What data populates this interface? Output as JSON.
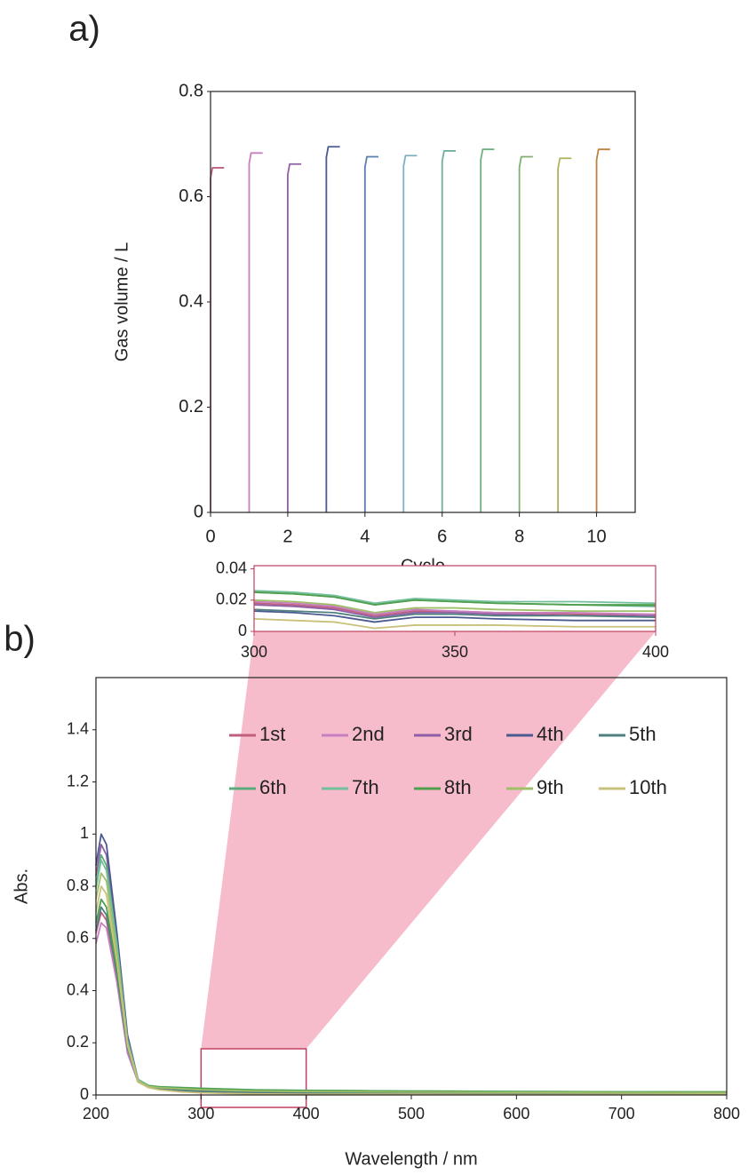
{
  "chart_data": [
    {
      "type": "line",
      "panel_label": "a)",
      "xlabel": "Cycle",
      "ylabel": "Gas volume / L",
      "xlim": [
        0,
        11
      ],
      "xticks": [
        0,
        2,
        4,
        6,
        8,
        10
      ],
      "ylim": [
        0,
        0.8
      ],
      "yticks": [
        0,
        0.2,
        0.4,
        0.6,
        0.8
      ],
      "grid": false,
      "series": [
        {
          "color": "#c0607f",
          "x": [
            0,
            0,
            0.05,
            0.35
          ],
          "values": [
            0,
            0.635,
            0.655,
            0.655
          ]
        },
        {
          "color": "#c77fc0",
          "x": [
            1,
            1,
            1.05,
            1.35
          ],
          "values": [
            0,
            0.663,
            0.683,
            0.683
          ]
        },
        {
          "color": "#8e5fa5",
          "x": [
            2,
            2,
            2.05,
            2.35
          ],
          "values": [
            0,
            0.642,
            0.662,
            0.662
          ]
        },
        {
          "color": "#4a5a90",
          "x": [
            3,
            3,
            3.05,
            3.35
          ],
          "values": [
            0,
            0.675,
            0.695,
            0.695
          ]
        },
        {
          "color": "#5a7fb0",
          "x": [
            4,
            4,
            4.05,
            4.35
          ],
          "values": [
            0,
            0.656,
            0.676,
            0.676
          ]
        },
        {
          "color": "#7fb0c0",
          "x": [
            5,
            5,
            5.05,
            5.35
          ],
          "values": [
            0,
            0.658,
            0.678,
            0.678
          ]
        },
        {
          "color": "#6fb09f",
          "x": [
            6,
            6,
            6.05,
            6.35
          ],
          "values": [
            0,
            0.667,
            0.687,
            0.687
          ]
        },
        {
          "color": "#6fb07f",
          "x": [
            7,
            7,
            7.05,
            7.35
          ],
          "values": [
            0,
            0.67,
            0.69,
            0.69
          ]
        },
        {
          "color": "#7fb06f",
          "x": [
            8,
            8,
            8.05,
            8.35
          ],
          "values": [
            0,
            0.656,
            0.676,
            0.676
          ]
        },
        {
          "color": "#b0b060",
          "x": [
            9,
            9,
            9.05,
            9.35
          ],
          "values": [
            0,
            0.653,
            0.673,
            0.673
          ]
        },
        {
          "color": "#c08040",
          "x": [
            10,
            10,
            10.05,
            10.35
          ],
          "values": [
            0,
            0.67,
            0.69,
            0.69
          ]
        }
      ]
    },
    {
      "type": "line",
      "panel_label": "b)",
      "xlabel": "Wavelength / nm",
      "ylabel": "Abs.",
      "legend": "upper right",
      "xlim": [
        200,
        800
      ],
      "xticks": [
        200,
        300,
        400,
        500,
        600,
        700,
        800
      ],
      "ylim": [
        0,
        1.6
      ],
      "yticks": [
        0,
        0.2,
        0.4,
        0.6,
        0.8,
        1,
        1.2,
        1.4
      ],
      "grid": false,
      "x": [
        200,
        205,
        210,
        220,
        230,
        240,
        250,
        260,
        280,
        300,
        350,
        400,
        500,
        600,
        700,
        800
      ],
      "series": [
        {
          "name": "1st",
          "color": "#c0607f",
          "values": [
            0.62,
            0.7,
            0.67,
            0.45,
            0.17,
            0.05,
            0.03,
            0.026,
            0.022,
            0.018,
            0.013,
            0.01,
            0.008,
            0.007,
            0.006,
            0.005
          ]
        },
        {
          "name": "2nd",
          "color": "#c77fc0",
          "values": [
            0.58,
            0.66,
            0.64,
            0.43,
            0.16,
            0.05,
            0.03,
            0.026,
            0.022,
            0.019,
            0.013,
            0.011,
            0.009,
            0.008,
            0.007,
            0.006
          ]
        },
        {
          "name": "3rd",
          "color": "#8e5fa5",
          "values": [
            0.84,
            0.96,
            0.92,
            0.6,
            0.22,
            0.06,
            0.034,
            0.028,
            0.022,
            0.017,
            0.012,
            0.01,
            0.008,
            0.007,
            0.006,
            0.005
          ]
        },
        {
          "name": "4th",
          "color": "#4a5a90",
          "values": [
            0.88,
            1.0,
            0.96,
            0.62,
            0.23,
            0.06,
            0.032,
            0.025,
            0.018,
            0.013,
            0.009,
            0.007,
            0.006,
            0.005,
            0.004,
            0.004
          ]
        },
        {
          "name": "5th",
          "color": "#4f7f7f",
          "values": [
            0.63,
            0.72,
            0.69,
            0.46,
            0.18,
            0.05,
            0.03,
            0.025,
            0.019,
            0.014,
            0.011,
            0.009,
            0.008,
            0.007,
            0.006,
            0.005
          ]
        },
        {
          "name": "6th",
          "color": "#5cab7a",
          "values": [
            0.8,
            0.92,
            0.88,
            0.58,
            0.21,
            0.06,
            0.036,
            0.031,
            0.028,
            0.025,
            0.019,
            0.016,
            0.013,
            0.011,
            0.01,
            0.009
          ]
        },
        {
          "name": "7th",
          "color": "#72c09a",
          "values": [
            0.79,
            0.9,
            0.86,
            0.57,
            0.21,
            0.06,
            0.037,
            0.032,
            0.029,
            0.026,
            0.02,
            0.018,
            0.015,
            0.013,
            0.012,
            0.011
          ]
        },
        {
          "name": "8th",
          "color": "#4f9f4f",
          "values": [
            0.66,
            0.75,
            0.72,
            0.48,
            0.19,
            0.055,
            0.035,
            0.031,
            0.028,
            0.025,
            0.019,
            0.017,
            0.015,
            0.013,
            0.012,
            0.012
          ]
        },
        {
          "name": "9th",
          "color": "#9fbf6a",
          "values": [
            0.75,
            0.85,
            0.82,
            0.54,
            0.2,
            0.055,
            0.033,
            0.028,
            0.024,
            0.02,
            0.015,
            0.013,
            0.011,
            0.01,
            0.009,
            0.008
          ]
        },
        {
          "name": "10th",
          "color": "#c9c07a",
          "values": [
            0.7,
            0.8,
            0.77,
            0.51,
            0.19,
            0.05,
            0.028,
            0.02,
            0.012,
            0.008,
            0.004,
            0.003,
            0.003,
            0.002,
            0.002,
            0.002
          ]
        }
      ]
    },
    {
      "type": "line",
      "xlim": [
        300,
        400
      ],
      "xticks": [
        300,
        350,
        400
      ],
      "ylim": [
        0,
        0.042
      ],
      "yticks": [
        0,
        0.02,
        0.04
      ],
      "grid": false,
      "x": [
        300,
        310,
        320,
        330,
        340,
        350,
        360,
        380,
        400
      ],
      "series": [
        {
          "color": "#c0607f",
          "values": [
            0.018,
            0.017,
            0.015,
            0.01,
            0.013,
            0.013,
            0.012,
            0.011,
            0.01
          ]
        },
        {
          "color": "#c77fc0",
          "values": [
            0.019,
            0.018,
            0.016,
            0.011,
            0.014,
            0.013,
            0.012,
            0.012,
            0.011
          ]
        },
        {
          "color": "#8e5fa5",
          "values": [
            0.017,
            0.016,
            0.014,
            0.009,
            0.012,
            0.012,
            0.011,
            0.01,
            0.01
          ]
        },
        {
          "color": "#4a5a90",
          "values": [
            0.013,
            0.012,
            0.01,
            0.006,
            0.009,
            0.009,
            0.008,
            0.007,
            0.007
          ]
        },
        {
          "color": "#4f7f7f",
          "values": [
            0.014,
            0.013,
            0.012,
            0.008,
            0.011,
            0.011,
            0.01,
            0.01,
            0.009
          ]
        },
        {
          "color": "#5cab7a",
          "values": [
            0.025,
            0.024,
            0.022,
            0.017,
            0.02,
            0.019,
            0.018,
            0.017,
            0.016
          ]
        },
        {
          "color": "#72c09a",
          "values": [
            0.026,
            0.025,
            0.023,
            0.018,
            0.021,
            0.02,
            0.019,
            0.019,
            0.018
          ]
        },
        {
          "color": "#4f9f4f",
          "values": [
            0.025,
            0.024,
            0.022,
            0.017,
            0.02,
            0.019,
            0.018,
            0.017,
            0.017
          ]
        },
        {
          "color": "#9fbf6a",
          "values": [
            0.02,
            0.019,
            0.017,
            0.012,
            0.015,
            0.015,
            0.014,
            0.013,
            0.013
          ]
        },
        {
          "color": "#c9c07a",
          "values": [
            0.008,
            0.007,
            0.006,
            0.002,
            0.004,
            0.004,
            0.004,
            0.003,
            0.003
          ]
        }
      ]
    }
  ]
}
